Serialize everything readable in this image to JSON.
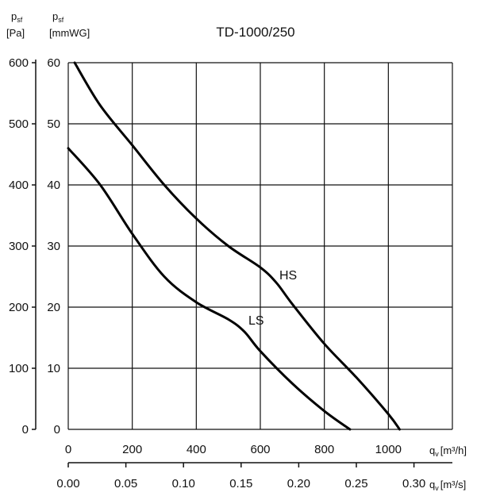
{
  "chart_data": {
    "type": "line",
    "title": "TD-1000/250",
    "y_left_label_pa": {
      "symbol": "p",
      "sub": "sf",
      "unit": "[Pa]"
    },
    "y_left_label_mmwg": {
      "symbol": "p",
      "sub": "sf",
      "unit": "[mmWG]"
    },
    "x_label_m3h": {
      "symbol": "q",
      "sub": "v",
      "unit": "[m³/h]"
    },
    "x_label_m3s": {
      "symbol": "q",
      "sub": "v",
      "unit": "[m³/s]"
    },
    "xlim": [
      0,
      1200
    ],
    "ylim": [
      0,
      600
    ],
    "grid": true,
    "y_ticks_pa": [
      "0",
      "100",
      "200",
      "300",
      "400",
      "500",
      "600"
    ],
    "y_ticks_mmwg": [
      "0",
      "10",
      "20",
      "30",
      "40",
      "50",
      "60"
    ],
    "x_ticks_m3h": [
      "0",
      "200",
      "400",
      "600",
      "800",
      "1000"
    ],
    "x_ticks_m3s": [
      "0.00",
      "0.05",
      "0.10",
      "0.15",
      "0.20",
      "0.25",
      "0.30"
    ],
    "series": [
      {
        "name": "HS",
        "x": [
          20,
          100,
          200,
          300,
          400,
          500,
          600,
          650,
          700,
          800,
          900,
          1000,
          1035
        ],
        "y": [
          600,
          530,
          465,
          400,
          345,
          300,
          265,
          240,
          205,
          140,
          85,
          25,
          0
        ]
      },
      {
        "name": "LS",
        "x": [
          0,
          100,
          200,
          300,
          400,
          500,
          550,
          600,
          700,
          800,
          880
        ],
        "y": [
          460,
          400,
          320,
          250,
          208,
          180,
          160,
          128,
          75,
          30,
          0
        ]
      }
    ]
  }
}
